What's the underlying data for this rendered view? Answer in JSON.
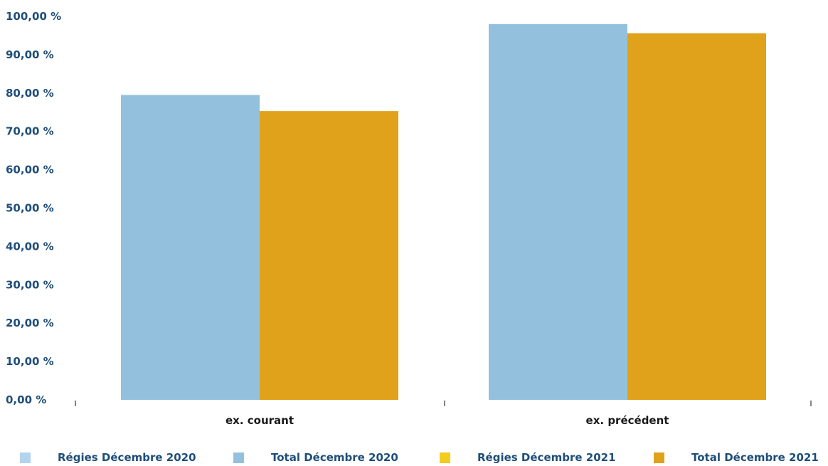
{
  "chart_data": {
    "type": "bar",
    "categories": [
      "ex. courant",
      "ex. précédent"
    ],
    "series": [
      {
        "name": "Total Décembre 2020",
        "values": [
          79.5,
          98.0
        ],
        "color": "#93c1dd"
      },
      {
        "name": "Total Décembre 2021",
        "values": [
          75.3,
          95.6
        ],
        "color": "#e0a11b"
      }
    ],
    "ylim": [
      0,
      100
    ],
    "yticks": [
      "0,00 %",
      "10,00 %",
      "20,00 %",
      "30,00 %",
      "40,00 %",
      "50,00 %",
      "60,00 %",
      "70,00 %",
      "80,00 %",
      "90,00 %",
      "100,00 %"
    ],
    "grid": false,
    "legend_position": "bottom"
  },
  "legend": [
    {
      "label": "Régies Décembre 2020",
      "color": "#b3d4ee"
    },
    {
      "label": "Total Décembre 2020",
      "color": "#93c1dd"
    },
    {
      "label": "Régies Décembre 2021",
      "color": "#f2cd1c"
    },
    {
      "label": "Total Décembre 2021",
      "color": "#e0a11b"
    }
  ]
}
